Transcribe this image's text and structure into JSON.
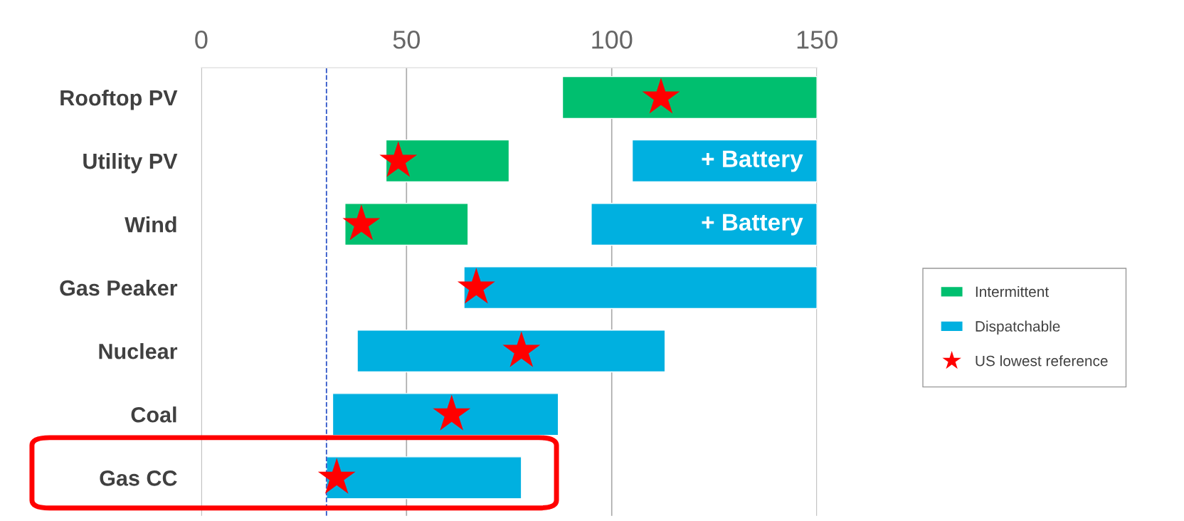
{
  "chart_data": {
    "type": "bar",
    "orientation": "horizontal",
    "categories": [
      "Rooftop PV",
      "Utility PV",
      "Wind",
      "Gas Peaker",
      "Nuclear",
      "Coal",
      "Gas CC"
    ],
    "series": [
      {
        "name": "Intermittent",
        "color": "#00bf6f",
        "values": [
          62,
          30,
          30,
          null,
          null,
          null,
          null
        ],
        "base": [
          88,
          45,
          35,
          null,
          null,
          null,
          null
        ]
      },
      {
        "name": "Dispatchable",
        "color": "#00b0e0",
        "values": [
          null,
          45,
          55,
          86,
          75,
          55,
          47.5
        ],
        "base": [
          null,
          105,
          95,
          64,
          38,
          32,
          30.5
        ]
      },
      {
        "name": "US lowest reference",
        "type": "scatter",
        "marker": "star",
        "color": "#ff0000",
        "values": [
          112,
          48,
          39,
          67,
          78,
          61,
          33
        ]
      }
    ],
    "xlim": [
      0,
      150
    ],
    "xticks": [
      0,
      50,
      100,
      150
    ],
    "grid": "x",
    "legend": "right",
    "ref_lines": [
      {
        "axis": "x",
        "value": 30.5,
        "color": "#2f55c8",
        "line_style": "dashed"
      }
    ],
    "annotations": [
      {
        "text": "+ Battery",
        "x": 150,
        "y": "Utility PV"
      },
      {
        "text": "+ Battery",
        "x": 150,
        "y": "Wind"
      }
    ]
  }
}
